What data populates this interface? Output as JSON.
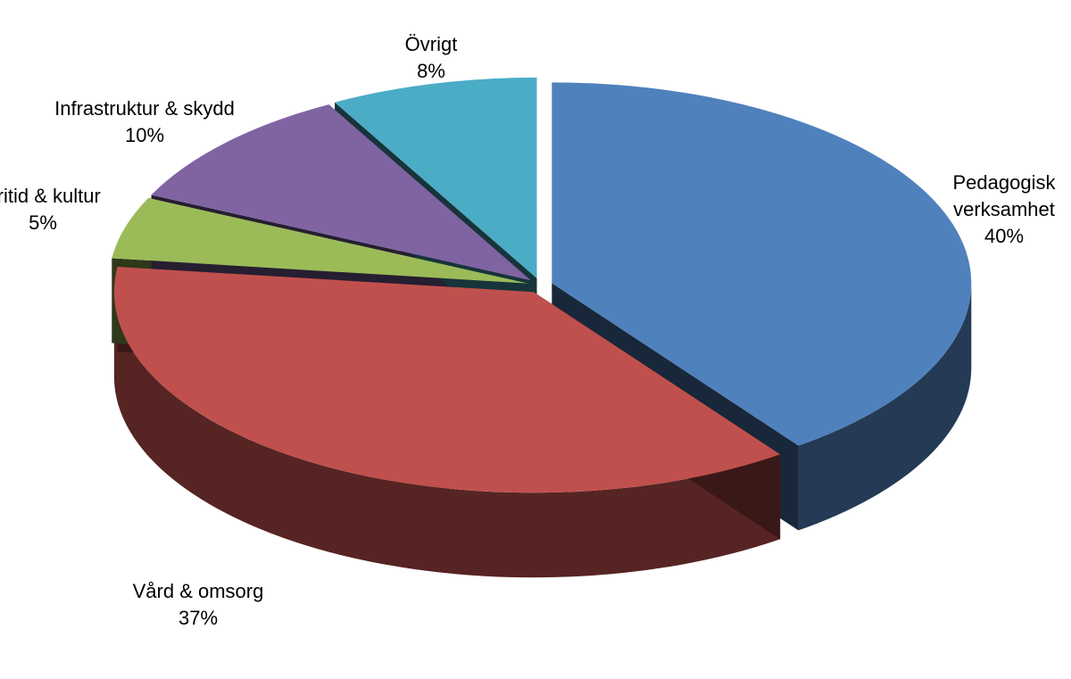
{
  "chart_data": {
    "type": "pie3d",
    "categories": [
      "Pedagogisk verksamhet",
      "Vård & omsorg",
      "Fritid & kultur",
      "Infrastruktur & skydd",
      "Övrigt"
    ],
    "values": [
      40,
      37,
      5,
      10,
      8
    ],
    "value_labels": [
      "40%",
      "37%",
      "5%",
      "10%",
      "8%"
    ],
    "colors": [
      "#4f81bd",
      "#c0504d",
      "#9bbb59",
      "#8064a2",
      "#4bacc6"
    ]
  }
}
